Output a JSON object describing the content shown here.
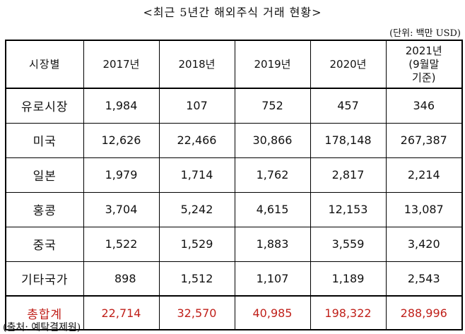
{
  "title": "<최근 5년간 해외주식 거래 현황>",
  "unit_note": "(단위: 백만 USD)",
  "table": {
    "header": [
      "시장별",
      "2017년",
      "2018년",
      "2019년",
      "2020년",
      "2021년\n(9월말\n기준)"
    ],
    "rows": [
      {
        "label": "유로시장",
        "values": [
          "1,984",
          "107",
          "752",
          "457",
          "346"
        ]
      },
      {
        "label": "미국",
        "values": [
          "12,626",
          "22,466",
          "30,866",
          "178,148",
          "267,387"
        ]
      },
      {
        "label": "일본",
        "values": [
          "1,979",
          "1,714",
          "1,762",
          "2,817",
          "2,214"
        ]
      },
      {
        "label": "홍콩",
        "values": [
          "3,704",
          "5,242",
          "4,615",
          "12,153",
          "13,087"
        ]
      },
      {
        "label": "중국",
        "values": [
          "1,522",
          "1,529",
          "1,883",
          "3,559",
          "3,420"
        ]
      },
      {
        "label": "기타국가",
        "values": [
          "898",
          "1,512",
          "1,107",
          "1,189",
          "2,543"
        ]
      }
    ],
    "total": {
      "label": "총합계",
      "values": [
        "22,714",
        "32,570",
        "40,985",
        "198,322",
        "288,996"
      ]
    }
  },
  "source": "(출처: 예탁결제원)",
  "colors": {
    "total_text": "#c0201a",
    "border": "#000000"
  }
}
